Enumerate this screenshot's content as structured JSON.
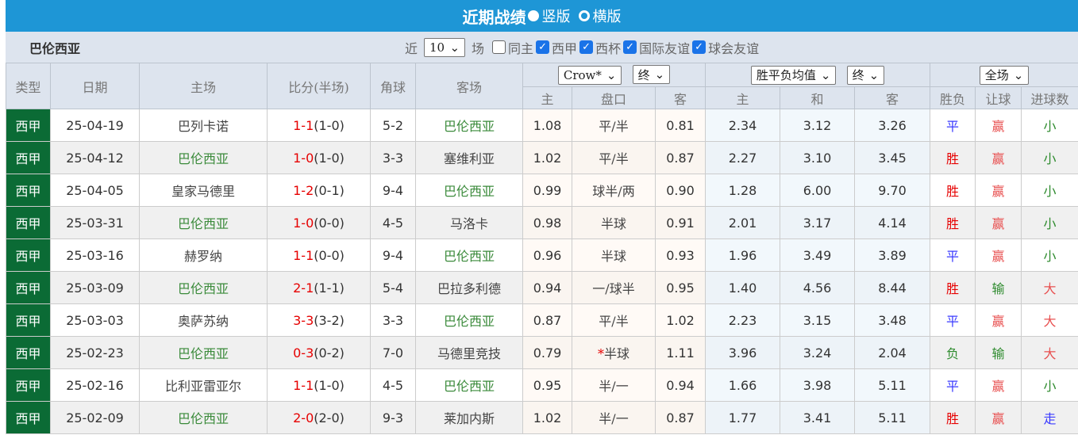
{
  "header": {
    "title": "近期战绩",
    "opt_vertical": "竖版",
    "opt_horizontal": "横版"
  },
  "filter": {
    "team": "巴伦西亚",
    "near": "近",
    "count": "10",
    "unit": "场",
    "same_home": "同主",
    "leagues": [
      "西甲",
      "西杯",
      "国际友谊",
      "球会友谊"
    ]
  },
  "columns": {
    "type": "类型",
    "date": "日期",
    "home": "主场",
    "score": "比分(半场)",
    "corner": "角球",
    "away": "客场",
    "company": "Crow*",
    "final1": "终",
    "avg": "胜平负均值",
    "final2": "终",
    "scope": "全场",
    "ah_home": "主",
    "ah_line": "盘口",
    "ah_away": "客",
    "eu_home": "主",
    "eu_draw": "和",
    "eu_away": "客",
    "res": "胜负",
    "handicap": "让球",
    "goals": "进球数"
  },
  "colors": {
    "brand": "#1e96d6",
    "league": "#0b6b35",
    "win": "#e60000",
    "draw": "#3a3aff",
    "loss": "#2e8b2e"
  },
  "rows": [
    {
      "type": "西甲",
      "date": "25-04-19",
      "home": "巴列卡诺",
      "score_ft": "1-1",
      "score_ht": "(1-0)",
      "corner": "5-2",
      "away": "巴伦西亚",
      "ah_h": "1.08",
      "ah_l": "平/半",
      "ah_a": "0.81",
      "eu_h": "2.34",
      "eu_d": "3.12",
      "eu_a": "3.26",
      "res": "平",
      "hc": "赢",
      "goals": "小",
      "team_home": false
    },
    {
      "type": "西甲",
      "date": "25-04-12",
      "home": "巴伦西亚",
      "score_ft": "1-0",
      "score_ht": "(1-0)",
      "corner": "3-3",
      "away": "塞维利亚",
      "ah_h": "1.02",
      "ah_l": "平/半",
      "ah_a": "0.87",
      "eu_h": "2.27",
      "eu_d": "3.10",
      "eu_a": "3.45",
      "res": "胜",
      "hc": "赢",
      "goals": "小",
      "team_home": true
    },
    {
      "type": "西甲",
      "date": "25-04-05",
      "home": "皇家马德里",
      "score_ft": "1-2",
      "score_ht": "(0-1)",
      "corner": "9-4",
      "away": "巴伦西亚",
      "ah_h": "0.99",
      "ah_l": "球半/两",
      "ah_a": "0.90",
      "eu_h": "1.28",
      "eu_d": "6.00",
      "eu_a": "9.70",
      "res": "胜",
      "hc": "赢",
      "goals": "小",
      "team_home": false
    },
    {
      "type": "西甲",
      "date": "25-03-31",
      "home": "巴伦西亚",
      "score_ft": "1-0",
      "score_ht": "(0-0)",
      "corner": "4-5",
      "away": "马洛卡",
      "ah_h": "0.98",
      "ah_l": "半球",
      "ah_a": "0.91",
      "eu_h": "2.01",
      "eu_d": "3.17",
      "eu_a": "4.14",
      "res": "胜",
      "hc": "赢",
      "goals": "小",
      "team_home": true
    },
    {
      "type": "西甲",
      "date": "25-03-16",
      "home": "赫罗纳",
      "score_ft": "1-1",
      "score_ht": "(0-0)",
      "corner": "9-4",
      "away": "巴伦西亚",
      "ah_h": "0.96",
      "ah_l": "半球",
      "ah_a": "0.93",
      "eu_h": "1.96",
      "eu_d": "3.49",
      "eu_a": "3.89",
      "res": "平",
      "hc": "赢",
      "goals": "小",
      "team_home": false
    },
    {
      "type": "西甲",
      "date": "25-03-09",
      "home": "巴伦西亚",
      "score_ft": "2-1",
      "score_ht": "(1-1)",
      "corner": "5-4",
      "away": "巴拉多利德",
      "ah_h": "0.94",
      "ah_l": "一/球半",
      "ah_a": "0.95",
      "eu_h": "1.40",
      "eu_d": "4.56",
      "eu_a": "8.44",
      "res": "胜",
      "hc": "输",
      "goals": "大",
      "team_home": true
    },
    {
      "type": "西甲",
      "date": "25-03-03",
      "home": "奥萨苏纳",
      "score_ft": "3-3",
      "score_ht": "(3-2)",
      "corner": "3-3",
      "away": "巴伦西亚",
      "ah_h": "0.87",
      "ah_l": "平/半",
      "ah_a": "1.02",
      "eu_h": "2.23",
      "eu_d": "3.15",
      "eu_a": "3.48",
      "res": "平",
      "hc": "赢",
      "goals": "大",
      "team_home": false
    },
    {
      "type": "西甲",
      "date": "25-02-23",
      "home": "巴伦西亚",
      "score_ft": "0-3",
      "score_ht": "(0-2)",
      "corner": "7-0",
      "away": "马德里竞技",
      "ah_h": "0.79",
      "ah_star": "*",
      "ah_l": "半球",
      "ah_a": "1.11",
      "eu_h": "3.96",
      "eu_d": "3.24",
      "eu_a": "2.04",
      "res": "负",
      "hc": "输",
      "goals": "大",
      "team_home": true
    },
    {
      "type": "西甲",
      "date": "25-02-16",
      "home": "比利亚雷亚尔",
      "score_ft": "1-1",
      "score_ht": "(1-0)",
      "corner": "4-5",
      "away": "巴伦西亚",
      "ah_h": "0.95",
      "ah_l": "半/一",
      "ah_a": "0.94",
      "eu_h": "1.66",
      "eu_d": "3.98",
      "eu_a": "5.11",
      "res": "平",
      "hc": "赢",
      "goals": "小",
      "team_home": false
    },
    {
      "type": "西甲",
      "date": "25-02-09",
      "home": "巴伦西亚",
      "score_ft": "2-0",
      "score_ht": "(2-0)",
      "corner": "9-3",
      "away": "莱加内斯",
      "ah_h": "1.02",
      "ah_l": "半/一",
      "ah_a": "0.87",
      "eu_h": "1.77",
      "eu_d": "3.41",
      "eu_a": "5.11",
      "res": "胜",
      "hc": "赢",
      "goals": "走",
      "team_home": true
    }
  ]
}
